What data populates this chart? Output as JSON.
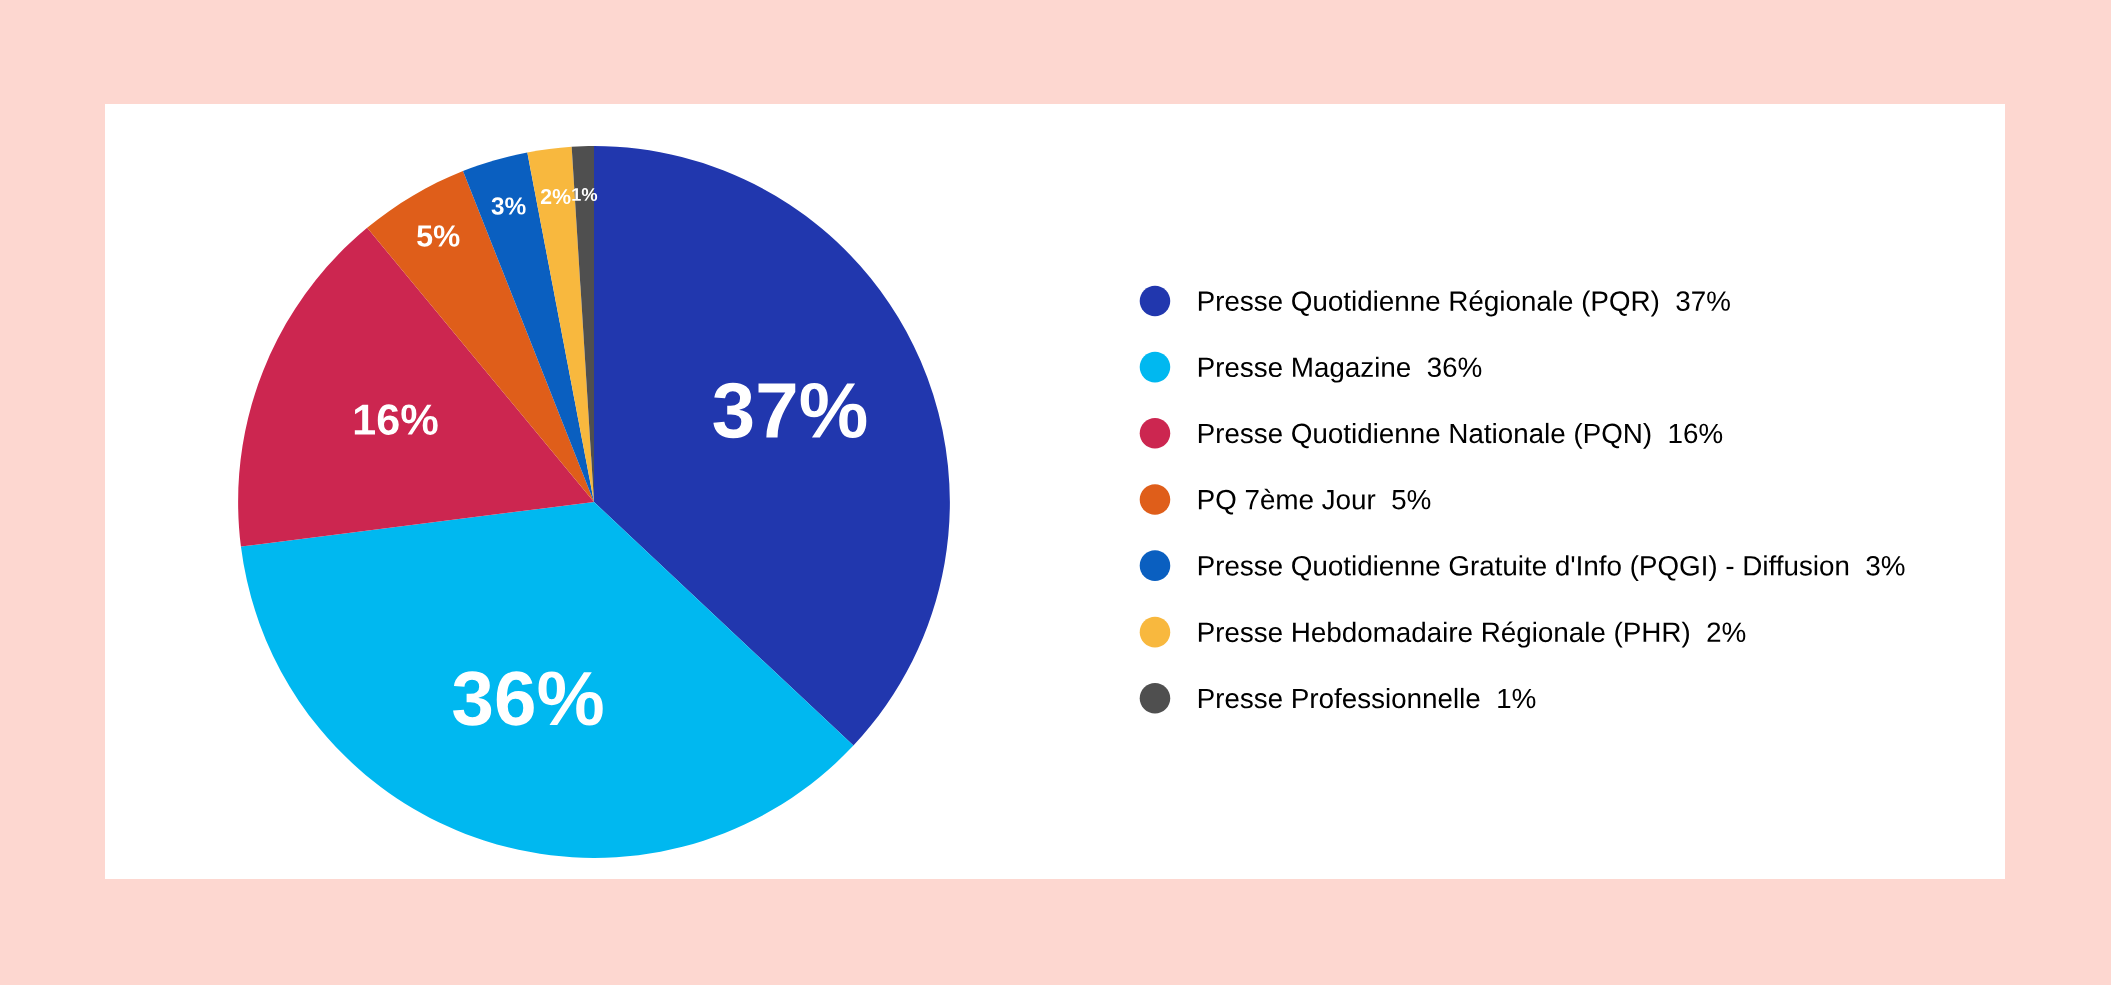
{
  "chart_data": {
    "type": "pie",
    "categories": [
      "Presse Quotidienne Régionale (PQR)",
      "Presse Magazine",
      "Presse Quotidienne Nationale (PQN)",
      "PQ 7ème Jour",
      "Presse Quotidienne Gratuite d'Info (PQGI) - Diffusion",
      "Presse Hebdomadaire Régionale (PHR)",
      "Presse Professionnelle"
    ],
    "values": [
      37,
      36,
      16,
      5,
      3,
      2,
      1
    ],
    "value_labels": [
      "37%",
      "36%",
      "16%",
      "5%",
      "3%",
      "2%",
      "1%"
    ],
    "colors": [
      "#2137ae",
      "#00b8f0",
      "#cc2650",
      "#df5e1a",
      "#0a5fc0",
      "#f8b83e",
      "#4f4f4f"
    ],
    "legend": "right"
  }
}
